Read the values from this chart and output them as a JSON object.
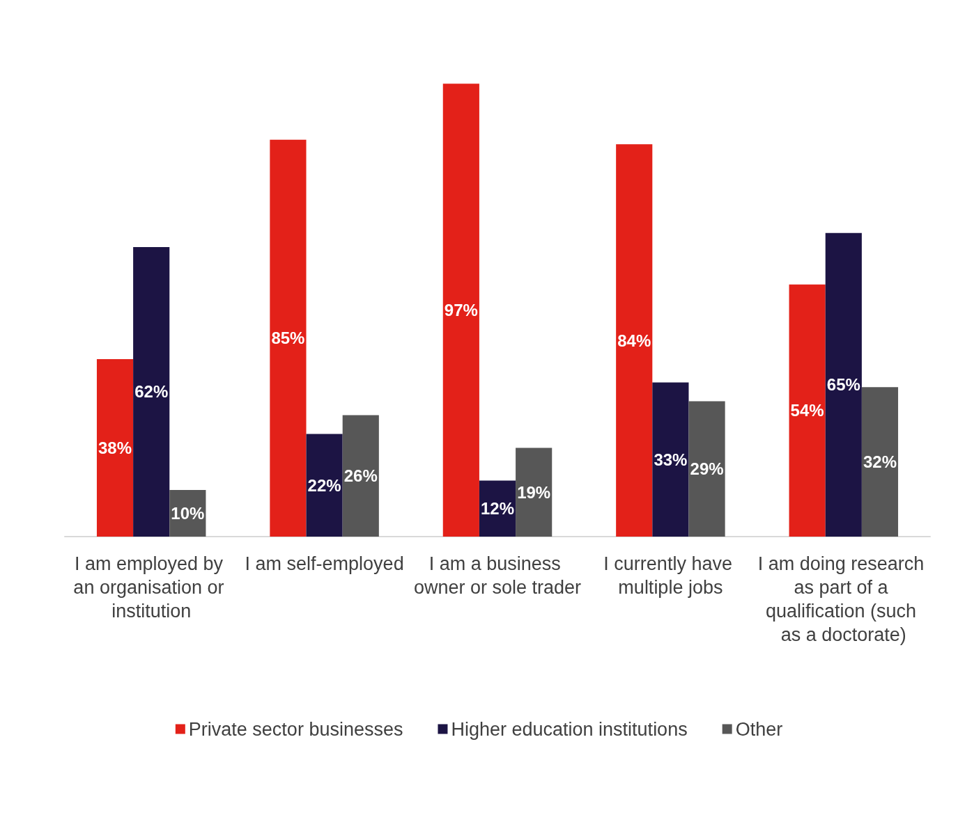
{
  "chart_data": {
    "type": "bar",
    "categories": [
      "I am employed by an organisation or institution",
      "I am self-employed",
      "I am a business owner or sole trader",
      "I currently have multiple jobs",
      "I am doing research as part of a qualification (such as a doctorate)"
    ],
    "series": [
      {
        "name": "Private sector businesses",
        "color": "#e32119",
        "values": [
          38,
          85,
          97,
          84,
          54
        ],
        "value_labels": [
          "38%",
          "85%",
          "97%",
          "84%",
          "54%"
        ]
      },
      {
        "name": "Higher education institutions",
        "color": "#1c1444",
        "values": [
          62,
          22,
          12,
          33,
          65
        ],
        "value_labels": [
          "62%",
          "22%",
          "12%",
          "33%",
          "65%"
        ]
      },
      {
        "name": "Other",
        "color": "#575757",
        "values": [
          10,
          26,
          19,
          29,
          32
        ],
        "value_labels": [
          "10%",
          "26%",
          "19%",
          "29%",
          "32%"
        ]
      }
    ],
    "legend": "bottom",
    "grid": false
  }
}
